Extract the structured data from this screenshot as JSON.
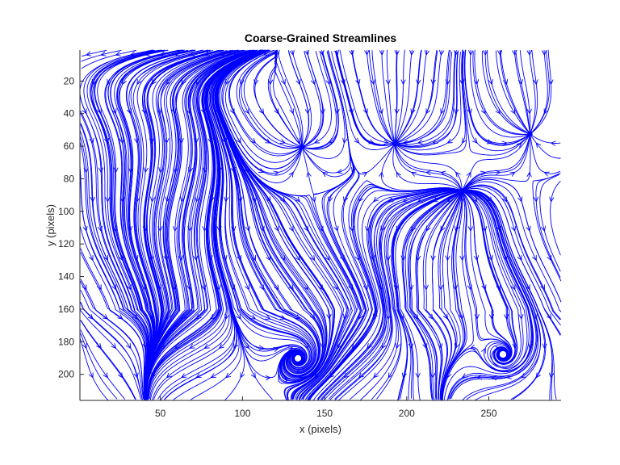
{
  "chart_data": {
    "type": "streamline",
    "title": "Coarse-Grained Streamlines",
    "xlabel": "x (pixels)",
    "ylabel": "y (pixels)",
    "xlim": [
      1,
      294
    ],
    "ylim": [
      1,
      216
    ],
    "y_axis_reversed": true,
    "xticks": [
      50,
      100,
      150,
      200,
      250
    ],
    "yticks": [
      20,
      40,
      60,
      80,
      100,
      120,
      140,
      160,
      180,
      200
    ],
    "line_color": "#0000ff",
    "grid": false,
    "box": false,
    "flow_features": {
      "sinks": [
        [
          193,
          58
        ],
        [
          275,
          52
        ],
        [
          136,
          60
        ]
      ],
      "sources": [
        [
          233,
          88
        ]
      ],
      "vortices": [
        [
          134,
          190
        ],
        [
          259,
          188
        ]
      ],
      "left_region": "predominantly downward flow",
      "top_left_region": "flow toward left edge"
    }
  }
}
